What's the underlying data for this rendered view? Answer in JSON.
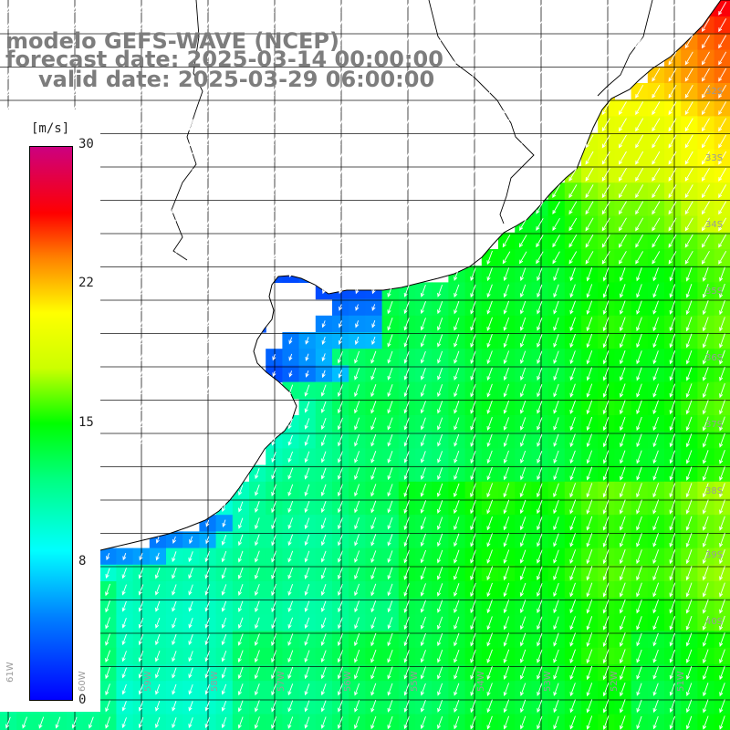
{
  "header": {
    "model_line": "modelo GEFS-WAVE (NCEP)",
    "forecast_line": "forecast date: 2025-03-14 00:00:00",
    "valid_line": "valid date: 2025-03-29 06:00:00"
  },
  "colorbar": {
    "unit": "[m/s]",
    "ticks": [
      "30",
      "22",
      "15",
      "8",
      "0"
    ]
  },
  "lat_labels": [
    "32S",
    "33S",
    "34S",
    "35S",
    "36S",
    "37S",
    "38S",
    "39S",
    "40S"
  ],
  "lon_labels": [
    "61W",
    "60W",
    "59W",
    "58W",
    "57W",
    "56W",
    "55W",
    "54W",
    "53W",
    "52W",
    "51W"
  ],
  "colors": {
    "land": "#ffffff",
    "coast": "#000000",
    "grid": "#000000",
    "arrows": "#ffffff",
    "title": "#7d7d7d"
  }
}
